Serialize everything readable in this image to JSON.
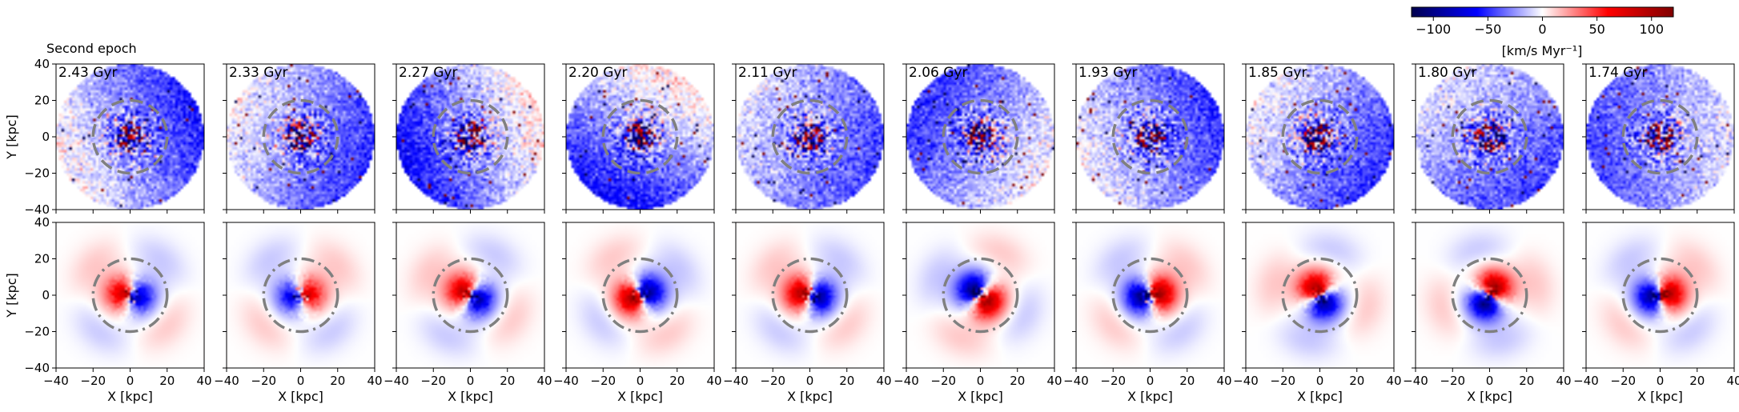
{
  "figure": {
    "title": "Second epoch",
    "colorbar": {
      "ticks": [
        "−100",
        "−50",
        "0",
        "50",
        "100"
      ],
      "tick_values": [
        -100,
        -50,
        0,
        50,
        100
      ],
      "range": [
        -120,
        120
      ],
      "label": "[km/s Myr⁻¹]",
      "colormap": "seismic",
      "colors": {
        "neg_end": "#00004d",
        "neg": "#0000ff",
        "mid": "#ffffff",
        "pos": "#ff0000",
        "pos_end": "#800000"
      }
    },
    "axis_color": "#000000",
    "circle_color": "#808080"
  },
  "chart_data": {
    "type": "heatmap",
    "title": "Second epoch",
    "layout": "2 rows x 10 columns of map panels",
    "xlabel": "X [kpc]",
    "ylabel": "Y [kpc]",
    "xlim": [
      -40,
      40
    ],
    "ylim": [
      -40,
      40
    ],
    "xticks": [
      -40,
      -20,
      0,
      20,
      40
    ],
    "yticks": [
      -40,
      -20,
      0,
      20,
      40
    ],
    "xtick_labels": [
      "−40",
      "−20",
      "0",
      "20",
      "40"
    ],
    "ytick_labels": [
      "−40",
      "−20",
      "0",
      "20",
      "40"
    ],
    "colorbar_range": [
      -120,
      120
    ],
    "colorbar_label": "[km/s Myr⁻¹]",
    "dashed_circle_radius_kpc": 20,
    "panel_times": [
      "2.43 Gyr",
      "2.33 Gyr",
      "2.27 Gyr",
      "2.20 Gyr",
      "2.11 Gyr",
      "2.06 Gyr",
      "1.93 Gyr",
      "1.85 Gyr",
      "1.80 Gyr",
      "1.74 Gyr"
    ],
    "top_row": {
      "description": "noisy particle map within radius 40 kpc",
      "large_scale_tilt_angle_deg": [
        200,
        160,
        20,
        60,
        160,
        330,
        200,
        150,
        130,
        0
      ],
      "large_scale_amplitude": [
        30,
        25,
        35,
        35,
        20,
        25,
        25,
        25,
        20,
        20
      ]
    },
    "bottom_row": {
      "description": "smooth central dipole pattern inside ~20 kpc",
      "dipole_angle_deg": [
        170,
        10,
        150,
        200,
        170,
        320,
        10,
        120,
        60,
        10
      ],
      "dipole_amplitude": [
        90,
        80,
        100,
        110,
        110,
        120,
        120,
        110,
        120,
        110
      ]
    }
  }
}
